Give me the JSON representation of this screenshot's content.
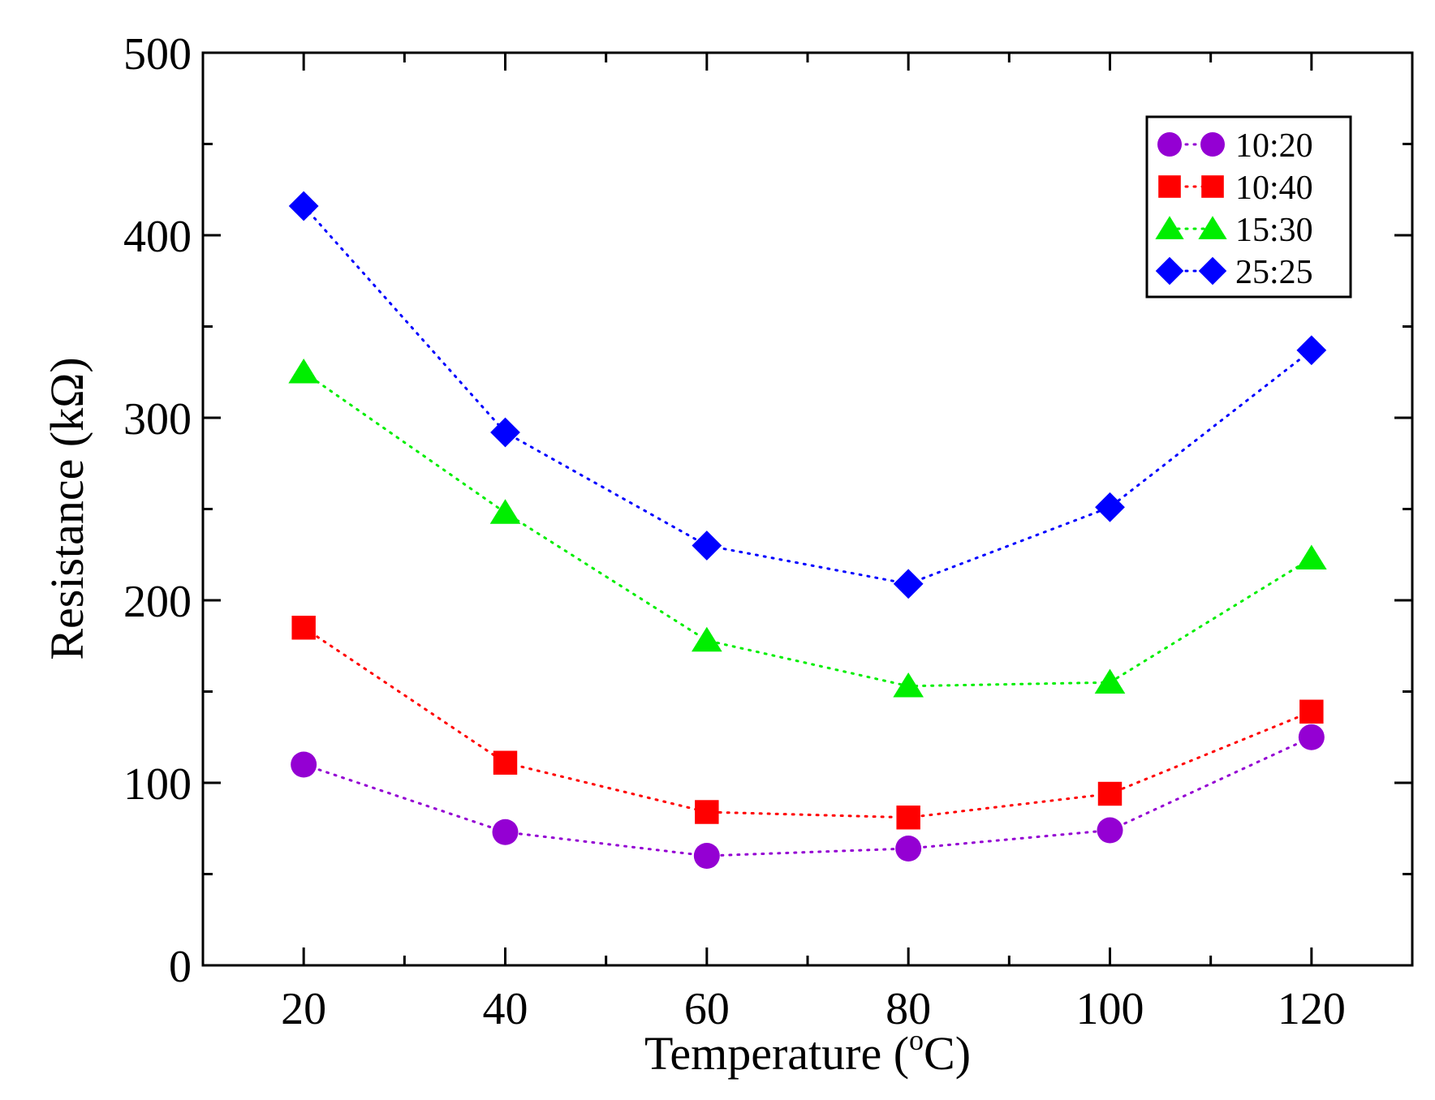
{
  "chart_data": {
    "type": "line",
    "title": "",
    "xlabel_main": "Temperature (",
    "xlabel_sup": "o",
    "xlabel_end": "C)",
    "ylabel": "Resistance (kΩ)",
    "xlim": [
      10,
      130
    ],
    "ylim": [
      0,
      500
    ],
    "x_major_ticks": [
      20,
      40,
      60,
      80,
      100,
      120
    ],
    "x_minor_ticks": [
      10,
      30,
      50,
      70,
      90,
      110,
      130
    ],
    "y_major_ticks": [
      0,
      100,
      200,
      300,
      400,
      500
    ],
    "y_minor_ticks": [
      50,
      150,
      250,
      350,
      450
    ],
    "x": [
      20,
      40,
      60,
      80,
      100,
      120
    ],
    "legend_position": "top-right",
    "series": [
      {
        "name": "10:20",
        "marker": "circle",
        "color": "#9400d3",
        "values": [
          110,
          73,
          60,
          64,
          74,
          125
        ]
      },
      {
        "name": "10:40",
        "marker": "square",
        "color": "#ff0000",
        "values": [
          185,
          111,
          84,
          81,
          94,
          139
        ]
      },
      {
        "name": "15:30",
        "marker": "triangle",
        "color": "#00ee00",
        "values": [
          325,
          248,
          178,
          153,
          155,
          223
        ]
      },
      {
        "name": "25:25",
        "marker": "diamond",
        "color": "#0000ff",
        "values": [
          416,
          292,
          230,
          209,
          251,
          337
        ]
      }
    ]
  }
}
